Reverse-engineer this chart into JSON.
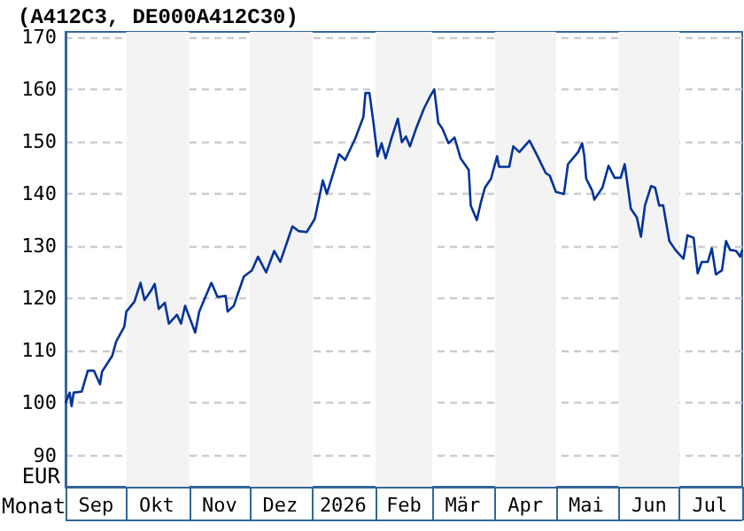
{
  "chart_data": {
    "type": "line",
    "title": "(A412C3, DE000A412C30)",
    "xlabel": "Monat",
    "ylabel": "EUR",
    "x": [
      "2025-09-01",
      "2025-09-03",
      "2025-09-04",
      "2025-09-05",
      "2025-09-09",
      "2025-09-12",
      "2025-09-15",
      "2025-09-18",
      "2025-09-19",
      "2025-09-24",
      "2025-09-26",
      "2025-09-30",
      "2025-10-01",
      "2025-10-05",
      "2025-10-08",
      "2025-10-10",
      "2025-10-13",
      "2025-10-15",
      "2025-10-17",
      "2025-10-20",
      "2025-10-22",
      "2025-10-26",
      "2025-10-28",
      "2025-10-30",
      "2025-11-04",
      "2025-11-06",
      "2025-11-12",
      "2025-11-15",
      "2025-11-19",
      "2025-11-20",
      "2025-11-23",
      "2025-11-28",
      "2025-12-02",
      "2025-12-05",
      "2025-12-09",
      "2025-12-13",
      "2025-12-16",
      "2025-12-22",
      "2025-12-25",
      "2025-12-29",
      "2026-01-02",
      "2026-01-06",
      "2026-01-08",
      "2026-01-14",
      "2026-01-17",
      "2026-01-22",
      "2026-01-26",
      "2026-01-27",
      "2026-01-29",
      "2026-01-31",
      "2026-02-02",
      "2026-02-04",
      "2026-02-06",
      "2026-02-09",
      "2026-02-12",
      "2026-02-14",
      "2026-02-16",
      "2026-02-18",
      "2026-02-21",
      "2026-02-25",
      "2026-02-28",
      "2026-03-02",
      "2026-03-04",
      "2026-03-06",
      "2026-03-09",
      "2026-03-12",
      "2026-03-15",
      "2026-03-19",
      "2026-03-20",
      "2026-03-23",
      "2026-03-25",
      "2026-03-27",
      "2026-03-30",
      "2026-04-02",
      "2026-04-03",
      "2026-04-08",
      "2026-04-10",
      "2026-04-13",
      "2026-04-18",
      "2026-04-22",
      "2026-04-26",
      "2026-04-28",
      "2026-05-01",
      "2026-05-05",
      "2026-05-07",
      "2026-05-12",
      "2026-05-14",
      "2026-05-15",
      "2026-05-16",
      "2026-05-19",
      "2026-05-20",
      "2026-05-24",
      "2026-05-27",
      "2026-05-30",
      "2026-06-02",
      "2026-06-04",
      "2026-06-05",
      "2026-06-07",
      "2026-06-10",
      "2026-06-12",
      "2026-06-14",
      "2026-06-17",
      "2026-06-19",
      "2026-06-21",
      "2026-06-23",
      "2026-06-26",
      "2026-06-29",
      "2026-07-03",
      "2026-07-05",
      "2026-07-08",
      "2026-07-10",
      "2026-07-12",
      "2026-07-15",
      "2026-07-17",
      "2026-07-19",
      "2026-07-22",
      "2026-07-24",
      "2026-07-26",
      "2026-07-29",
      "2026-07-31",
      "2026-08-01"
    ],
    "series": [
      {
        "color": "#003399",
        "values": [
          100,
          102,
          99.4,
          102,
          102.2,
          106.2,
          106.2,
          103.6,
          106,
          109,
          111.8,
          114.6,
          117.5,
          119.4,
          123,
          119.7,
          121.4,
          122.8,
          118,
          119.2,
          115.2,
          116.9,
          115.2,
          118.6,
          113.5,
          117.5,
          123,
          120.3,
          120.5,
          117.5,
          118.6,
          124.2,
          125.4,
          128,
          125,
          129.1,
          127,
          133.8,
          132.9,
          132.7,
          135.2,
          142.6,
          140,
          147.6,
          146.5,
          150.6,
          154.7,
          159.3,
          159.3,
          153.6,
          147.2,
          149.7,
          146.8,
          150.8,
          154.4,
          149.9,
          151,
          149.1,
          152.5,
          156.4,
          158.7,
          160,
          153.6,
          152.5,
          149.7,
          150.8,
          146.8,
          144.6,
          137.8,
          135,
          138.4,
          141.2,
          142.9,
          147.2,
          145.2,
          145.2,
          149.1,
          148,
          150.2,
          147.2,
          144,
          143.5,
          140.4,
          140,
          145.7,
          148,
          149.7,
          147.4,
          142.9,
          140.6,
          138.9,
          141.2,
          145.4,
          143.1,
          143.1,
          145.7,
          142.9,
          137.2,
          135.5,
          131.8,
          137.8,
          141.5,
          141.2,
          137.8,
          137.8,
          131,
          129.3,
          127.6,
          132.1,
          131.6,
          124.8,
          127,
          127,
          129.6,
          124.6,
          125.4,
          131,
          129.3,
          129.1,
          128,
          129.3
        ]
      }
    ],
    "xlim": [
      "2025-09-01",
      "2026-08-01"
    ],
    "xticks": [
      {
        "value": "2025-09-16",
        "label": "Sep"
      },
      {
        "value": "2025-10-16",
        "label": "Okt"
      },
      {
        "value": "2025-11-16",
        "label": "Nov"
      },
      {
        "value": "2025-12-16",
        "label": "Dez"
      },
      {
        "value": "2026-01-16",
        "label": "2026"
      },
      {
        "value": "2026-02-15",
        "label": "Feb"
      },
      {
        "value": "2026-03-16",
        "label": "Mär"
      },
      {
        "value": "2026-04-16",
        "label": "Apr"
      },
      {
        "value": "2026-05-16",
        "label": "Mai"
      },
      {
        "value": "2026-06-16",
        "label": "Jun"
      },
      {
        "value": "2026-07-16",
        "label": "Jul"
      }
    ],
    "ylim": [
      84,
      171
    ],
    "yticks": [
      90,
      100,
      110,
      120,
      130,
      140,
      150,
      160,
      170
    ],
    "bands": [
      {
        "axis": "x",
        "from": "2025-10-01",
        "to": "2025-11-01",
        "color": "#f3f3f3"
      },
      {
        "axis": "x",
        "from": "2025-12-01",
        "to": "2026-01-01",
        "color": "#f3f3f3"
      },
      {
        "axis": "x",
        "from": "2026-02-01",
        "to": "2026-03-01",
        "color": "#f3f3f3"
      },
      {
        "axis": "x",
        "from": "2026-04-01",
        "to": "2026-05-01",
        "color": "#f3f3f3"
      },
      {
        "axis": "x",
        "from": "2026-06-01",
        "to": "2026-07-01",
        "color": "#f3f3f3"
      }
    ],
    "grid": "y",
    "marker": "none",
    "line_style": "solid"
  }
}
